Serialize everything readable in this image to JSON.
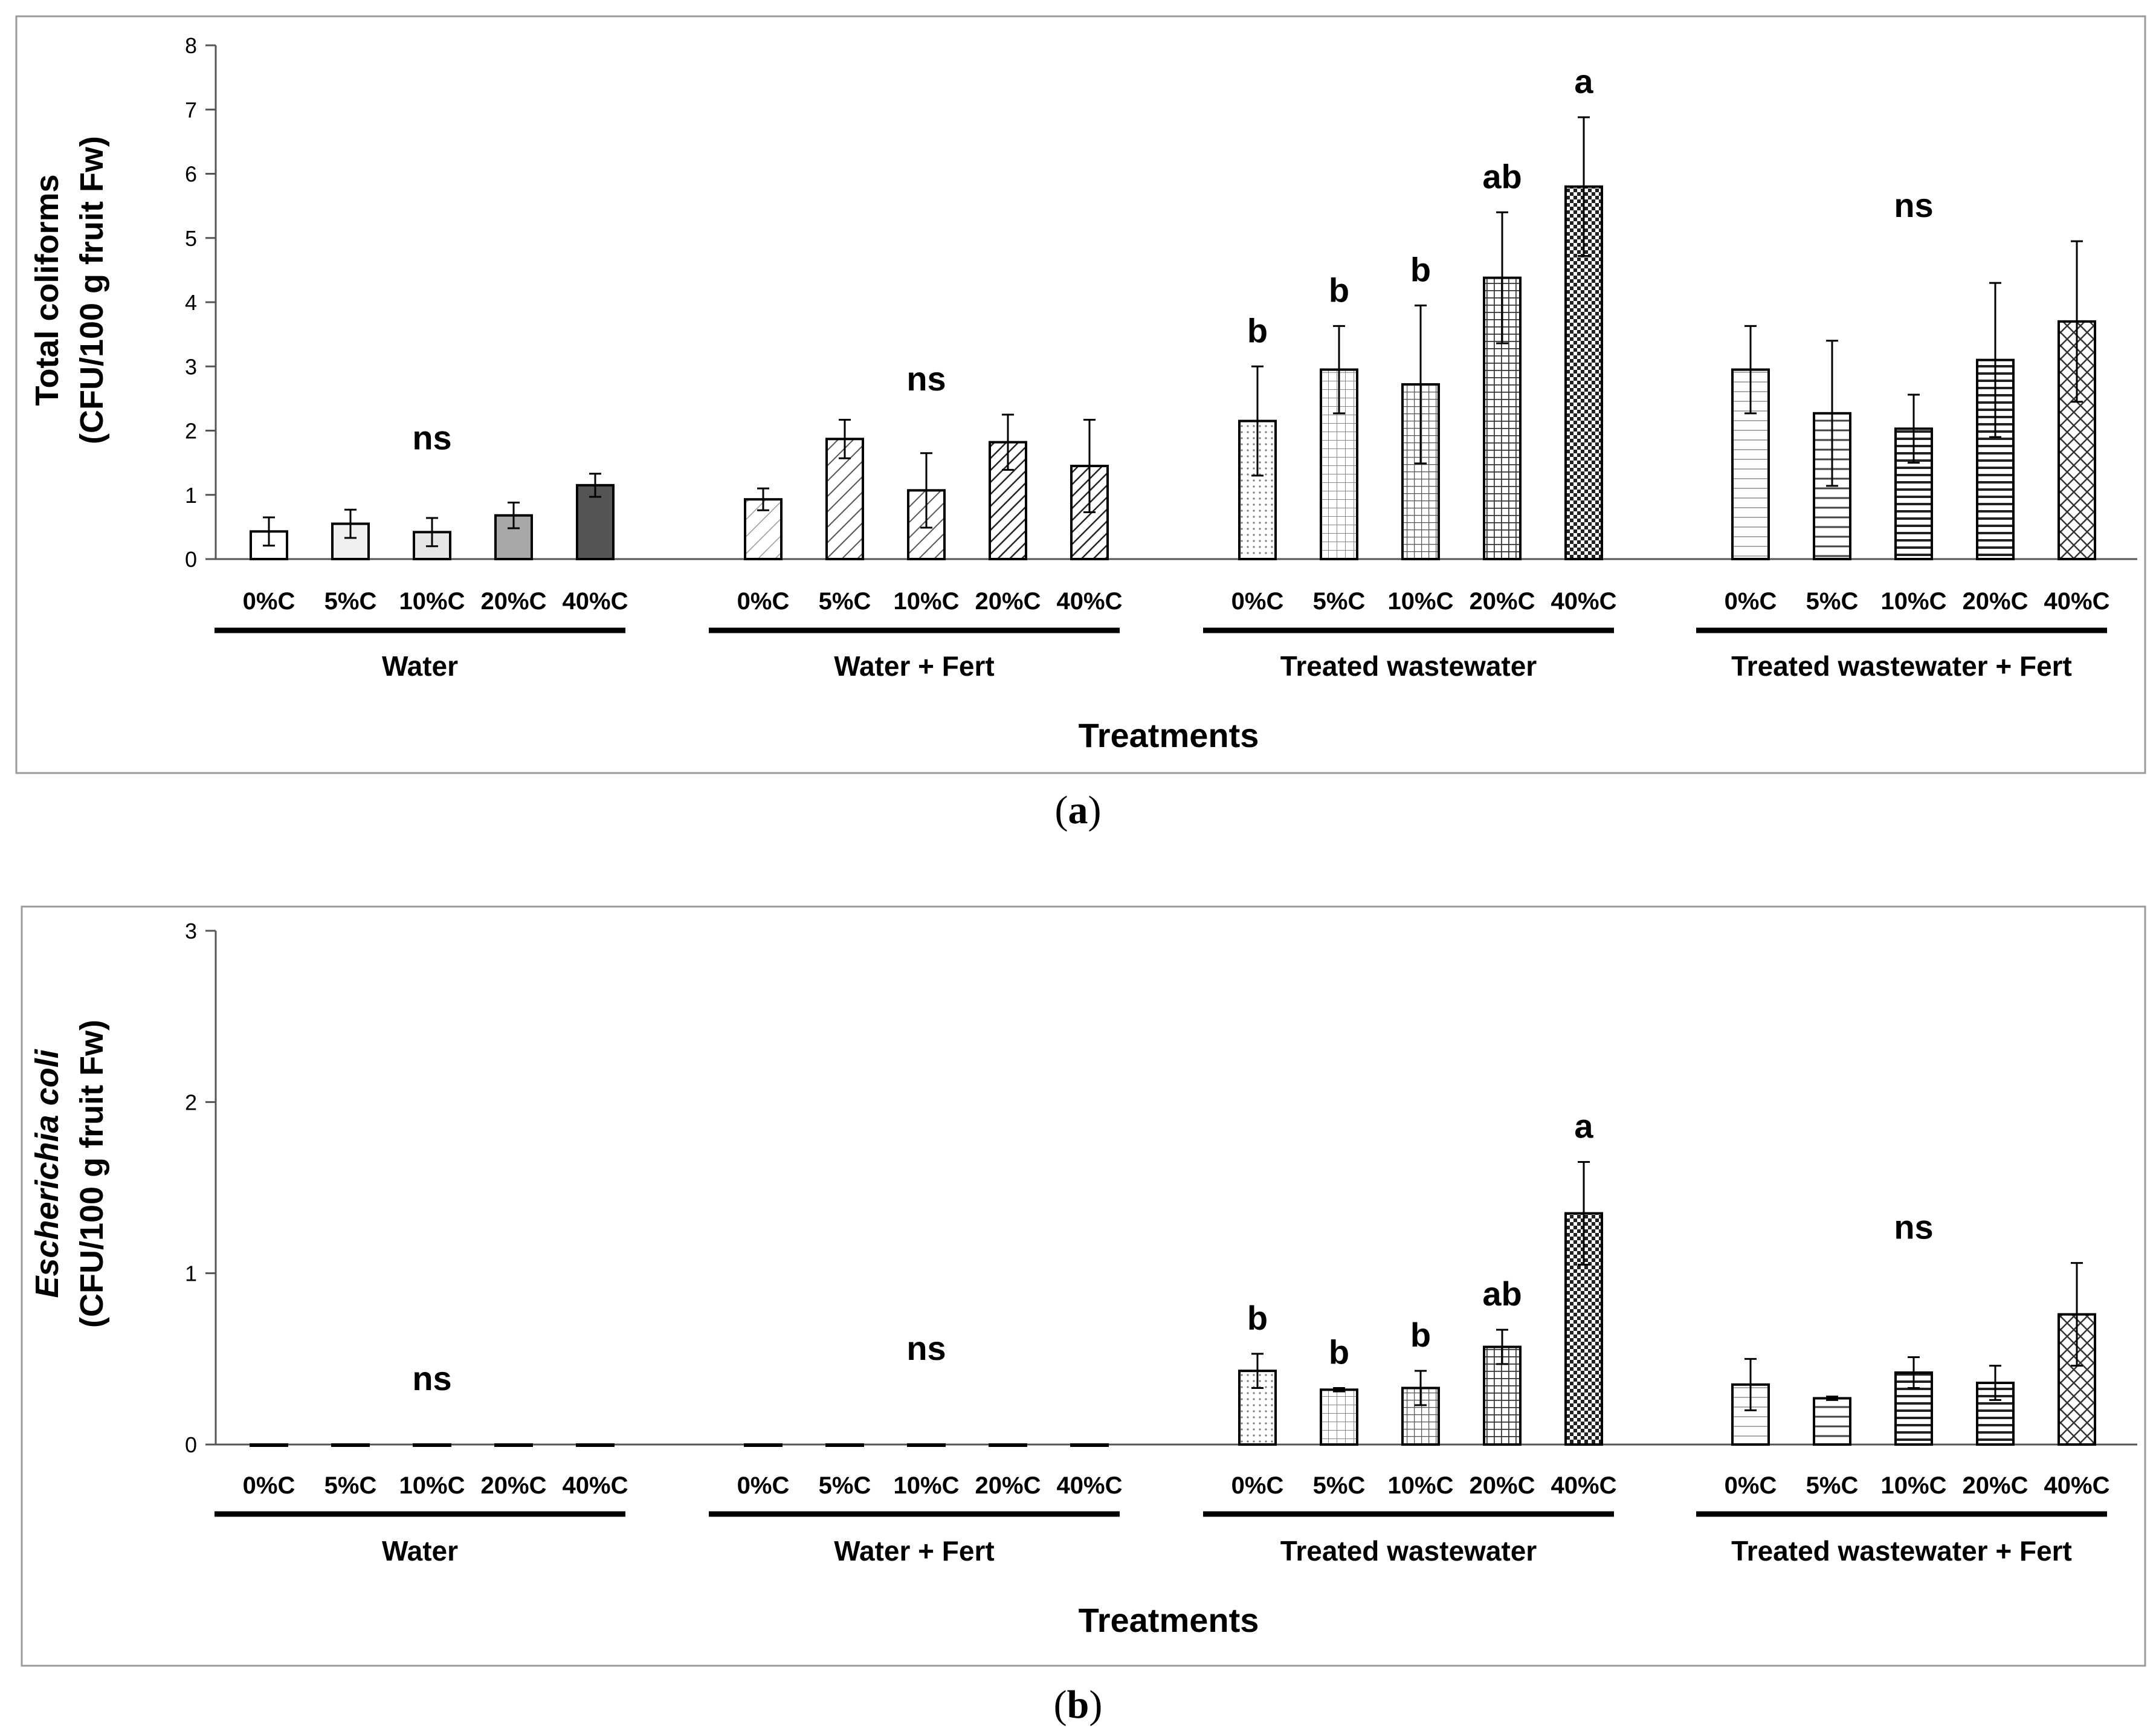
{
  "chart_data": [
    {
      "type": "bar",
      "panel_label": "a",
      "ylabel_line1": "Total coliforms",
      "ylabel_line2": "(CFU/100 g fruit Fw)",
      "xlabel": "Treatments",
      "ylim": [
        0,
        8
      ],
      "yticks": [
        "0",
        "1",
        "2",
        "3",
        "4",
        "5",
        "6",
        "7",
        "8"
      ],
      "categories": [
        "0%C",
        "5%C",
        "10%C",
        "20%C",
        "40%C"
      ],
      "groups": [
        {
          "name": "Water",
          "values": [
            0.43,
            0.55,
            0.42,
            0.68,
            1.15
          ],
          "errors": [
            0.22,
            0.22,
            0.22,
            0.2,
            0.18
          ],
          "fills": [
            "#ffffff",
            "#f0f0f0",
            "#e6e6e6",
            "#a8a8a8",
            "#555555"
          ],
          "patterns": [
            "",
            "",
            "",
            "",
            ""
          ],
          "letters": [
            "",
            "",
            "ns",
            "",
            ""
          ]
        },
        {
          "name": "Water + Fert",
          "values": [
            0.93,
            1.87,
            1.07,
            1.82,
            1.45
          ],
          "errors": [
            0.17,
            0.3,
            0.58,
            0.43,
            0.72
          ],
          "fills": [
            "#ffffff",
            "#ffffff",
            "#ffffff",
            "#ffffff",
            "#ffffff"
          ],
          "patterns": [
            "diagS",
            "diagM",
            "diagM",
            "diagD",
            "diagD"
          ],
          "letters": [
            "",
            "",
            "ns",
            "",
            ""
          ]
        },
        {
          "name": "Treated wastewater",
          "values": [
            2.15,
            2.95,
            2.72,
            4.38,
            5.8
          ],
          "errors": [
            0.85,
            0.68,
            1.23,
            1.02,
            1.08
          ],
          "fills": [
            "#ffffff",
            "#ffffff",
            "#ffffff",
            "#ffffff",
            "#ffffff"
          ],
          "patterns": [
            "dotS",
            "gridS",
            "gridM",
            "gridD",
            "checkD"
          ],
          "letters": [
            "b",
            "b",
            "b",
            "ab",
            "a"
          ]
        },
        {
          "name": "Treated wastewater + Fert",
          "values": [
            2.95,
            2.27,
            2.03,
            3.1,
            3.7
          ],
          "errors": [
            0.68,
            1.13,
            0.53,
            1.2,
            1.25
          ],
          "fills": [
            "#ffffff",
            "#ffffff",
            "#ffffff",
            "#ffffff",
            "#ffffff"
          ],
          "patterns": [
            "hlineS",
            "hlineM",
            "hlineD",
            "hlineD",
            "xhatch"
          ],
          "letters": [
            "",
            "",
            "ns",
            "",
            ""
          ]
        }
      ]
    },
    {
      "type": "bar",
      "panel_label": "b",
      "ylabel_line1": "Escherichia coli",
      "ylabel_line2": "(CFU/100 g fruit Fw)",
      "xlabel": "Treatments",
      "ylim": [
        0,
        3
      ],
      "yticks": [
        "0",
        "1",
        "2",
        "3"
      ],
      "categories": [
        "0%C",
        "5%C",
        "10%C",
        "20%C",
        "40%C"
      ],
      "groups": [
        {
          "name": "Water",
          "values": [
            0,
            0,
            0,
            0,
            0
          ],
          "errors": [
            0,
            0,
            0,
            0,
            0
          ],
          "fills": [
            "#ffffff",
            "#ffffff",
            "#ffffff",
            "#ffffff",
            "#ffffff"
          ],
          "patterns": [
            "",
            "",
            "",
            "",
            ""
          ],
          "letters": [
            "",
            "",
            "ns",
            "",
            ""
          ]
        },
        {
          "name": "Water + Fert",
          "values": [
            0,
            0,
            0,
            0,
            0
          ],
          "errors": [
            0,
            0,
            0,
            0,
            0
          ],
          "fills": [
            "#ffffff",
            "#ffffff",
            "#ffffff",
            "#ffffff",
            "#ffffff"
          ],
          "patterns": [
            "",
            "",
            "",
            "",
            ""
          ],
          "letters": [
            "",
            "",
            "ns",
            "",
            ""
          ]
        },
        {
          "name": "Treated wastewater",
          "values": [
            0.43,
            0.32,
            0.33,
            0.57,
            1.35
          ],
          "errors": [
            0.1,
            0.01,
            0.1,
            0.1,
            0.3
          ],
          "fills": [
            "#ffffff",
            "#ffffff",
            "#ffffff",
            "#ffffff",
            "#ffffff"
          ],
          "patterns": [
            "dotS",
            "gridS",
            "gridM",
            "gridD",
            "checkD"
          ],
          "letters": [
            "b",
            "b",
            "b",
            "ab",
            "a"
          ]
        },
        {
          "name": "Treated wastewater + Fert",
          "values": [
            0.35,
            0.27,
            0.42,
            0.36,
            0.76
          ],
          "errors": [
            0.15,
            0.01,
            0.09,
            0.1,
            0.3
          ],
          "fills": [
            "#ffffff",
            "#ffffff",
            "#ffffff",
            "#ffffff",
            "#ffffff"
          ],
          "patterns": [
            "hlineS",
            "hlineM",
            "hlineD",
            "hlineD",
            "xhatch"
          ],
          "letters": [
            "",
            "",
            "ns",
            "",
            ""
          ]
        }
      ]
    }
  ]
}
